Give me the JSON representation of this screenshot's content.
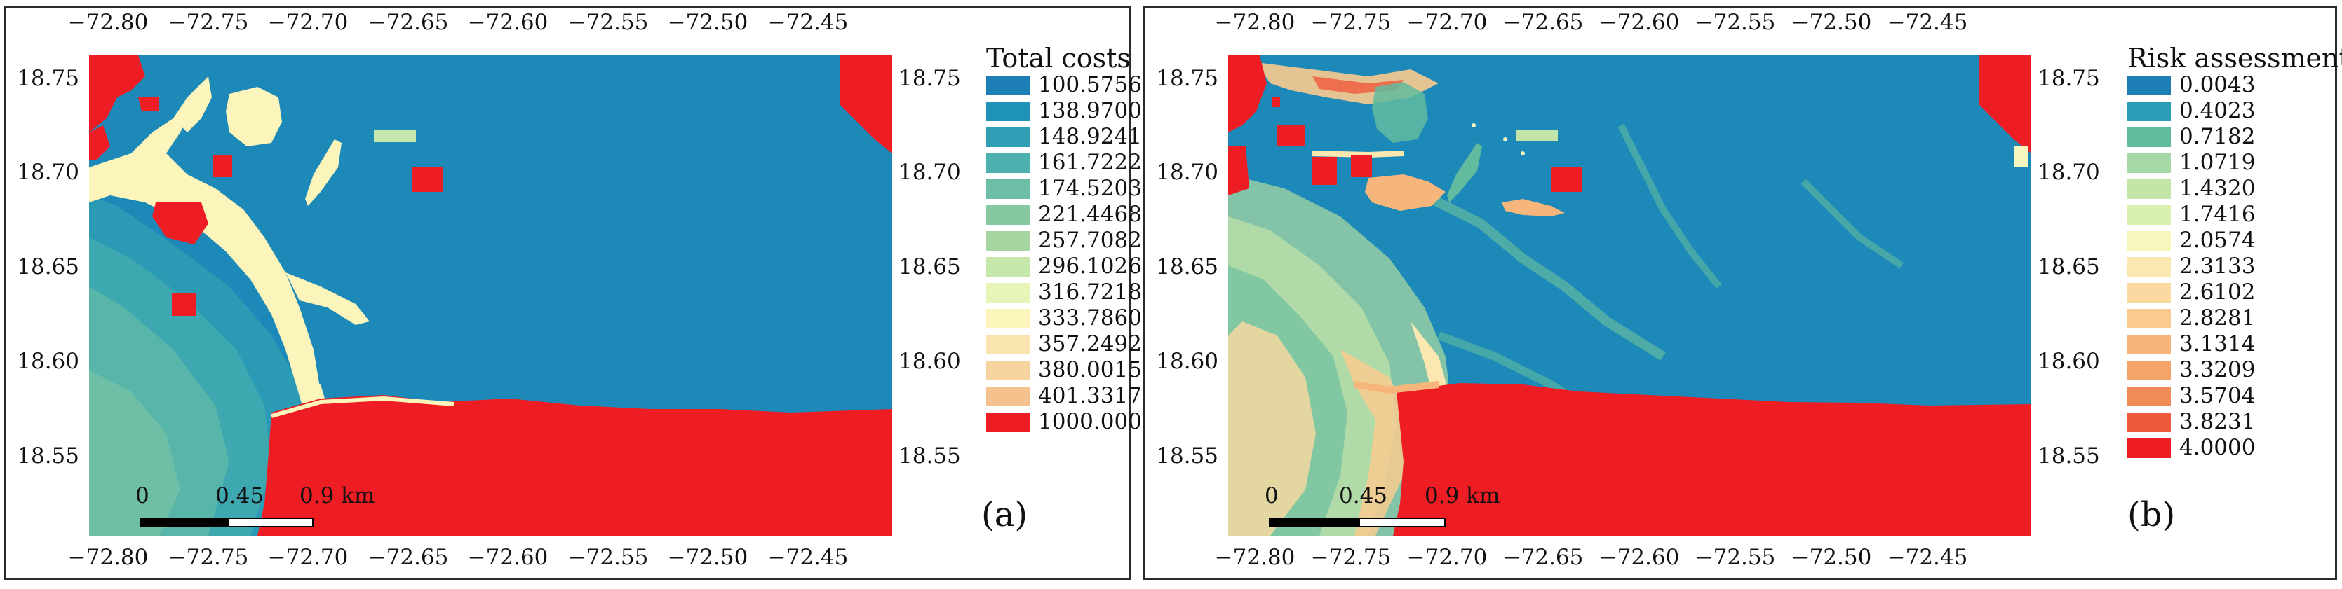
{
  "panels": [
    {
      "id": "a",
      "label": "(a)",
      "legend_title": "Total costs",
      "legend": [
        {
          "label": "100.5756",
          "color": "#1d7fb5"
        },
        {
          "label": "138.9700",
          "color": "#1f92b8"
        },
        {
          "label": "148.9241",
          "color": "#2e9fb4"
        },
        {
          "label": "161.7222",
          "color": "#4bb0ae"
        },
        {
          "label": "174.5203",
          "color": "#6cbfa6"
        },
        {
          "label": "221.4468",
          "color": "#86c9a1"
        },
        {
          "label": "257.7082",
          "color": "#a5d6a0"
        },
        {
          "label": "296.1026",
          "color": "#c6e7ab"
        },
        {
          "label": "316.7218",
          "color": "#e7f5b8"
        },
        {
          "label": "333.7860",
          "color": "#fbf4bb"
        },
        {
          "label": "357.2492",
          "color": "#f9e3ae"
        },
        {
          "label": "380.0015",
          "color": "#f7d39f"
        },
        {
          "label": "401.3317",
          "color": "#f5c28d"
        },
        {
          "label": "1000.0000",
          "color": "#ee1d23"
        }
      ]
    },
    {
      "id": "b",
      "label": "(b)",
      "legend_title": "Risk assessment",
      "legend": [
        {
          "label": "0.0043",
          "color": "#1d7fb5"
        },
        {
          "label": "0.4023",
          "color": "#2a9cb5"
        },
        {
          "label": "0.7182",
          "color": "#62bb9f"
        },
        {
          "label": "1.0719",
          "color": "#a5d8a4"
        },
        {
          "label": "1.4320",
          "color": "#c3e6a8"
        },
        {
          "label": "1.7416",
          "color": "#d9efb0"
        },
        {
          "label": "2.0574",
          "color": "#f7f6bd"
        },
        {
          "label": "2.3133",
          "color": "#fbe7b0"
        },
        {
          "label": "2.6102",
          "color": "#fbd9a0"
        },
        {
          "label": "2.8281",
          "color": "#f9cb8e"
        },
        {
          "label": "3.1314",
          "color": "#f6b57a"
        },
        {
          "label": "3.3209",
          "color": "#f4a46b"
        },
        {
          "label": "3.5704",
          "color": "#f18c58"
        },
        {
          "label": "3.8231",
          "color": "#ef5a3d"
        },
        {
          "label": "4.0000",
          "color": "#ee1d23"
        }
      ]
    }
  ],
  "axes": {
    "lon_ticks": [
      "−72.80",
      "−72.75",
      "−72.70",
      "−72.65",
      "−72.60",
      "−72.55",
      "−72.50",
      "−72.45"
    ],
    "lat_ticks": [
      "18.75",
      "18.70",
      "18.65",
      "18.60",
      "18.55"
    ]
  },
  "scalebar": {
    "labels": [
      "0",
      "0.45",
      "0.9 km"
    ]
  }
}
